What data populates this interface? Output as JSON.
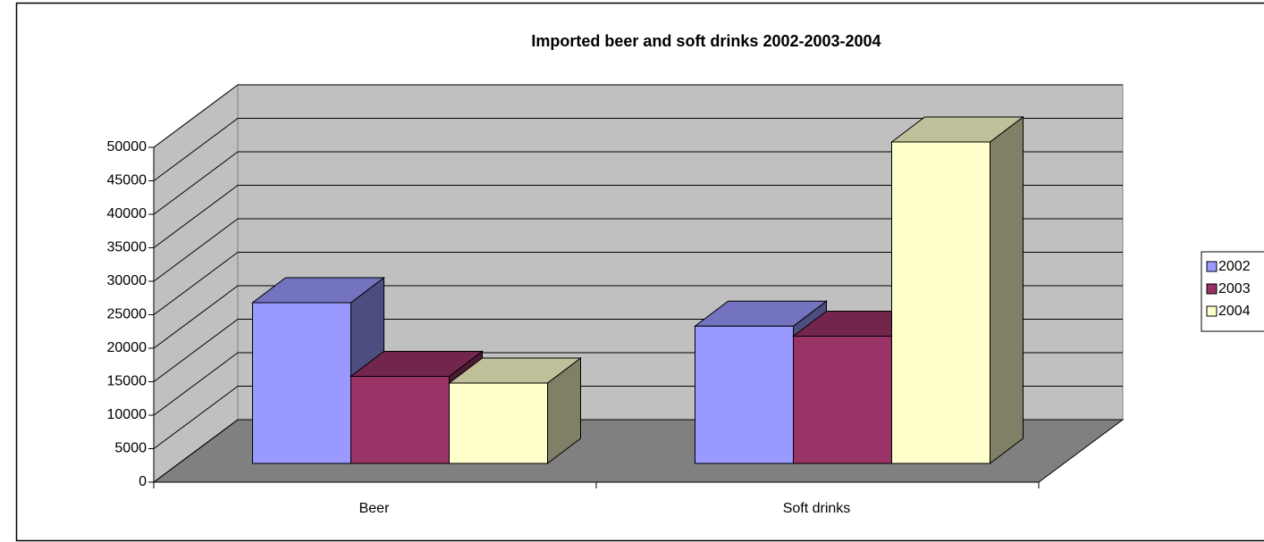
{
  "chart_data": {
    "type": "bar3d",
    "title": "Imported beer and soft drinks 2002-2003-2004",
    "categories": [
      "Beer",
      "Soft drinks"
    ],
    "series": [
      {
        "name": "2002",
        "color": "#9999ff",
        "values": [
          24000,
          20500
        ]
      },
      {
        "name": "2003",
        "color": "#993366",
        "values": [
          13000,
          19000
        ]
      },
      {
        "name": "2004",
        "color": "#ffffcc",
        "values": [
          12000,
          48000
        ]
      }
    ],
    "ylim": [
      0,
      50000
    ],
    "yticks": [
      0,
      5000,
      10000,
      15000,
      20000,
      25000,
      30000,
      35000,
      40000,
      45000,
      50000
    ],
    "grid": true,
    "legend": "right"
  }
}
